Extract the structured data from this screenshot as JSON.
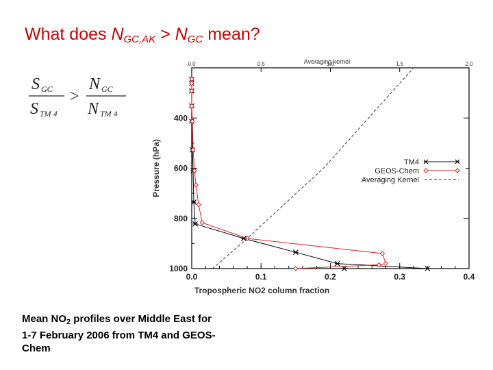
{
  "slide": {
    "title": {
      "prefix": "What does ",
      "n1": "N",
      "n1_sub": "GC,AK",
      "gt": " > ",
      "n2": "N",
      "n2_sub": "GC",
      "suffix": " mean?"
    },
    "formula": {
      "num_left": "S",
      "num_left_sub": "GC",
      "den_left": "S",
      "den_left_sub": "TM 4",
      "operator": ">",
      "num_right": "N",
      "num_right_sub": "GC",
      "den_right": "N",
      "den_right_sub": "TM 4"
    },
    "caption": {
      "pre": "Mean NO",
      "sub": "2",
      "post": " profiles over Middle East for 1-7 February 2006 from TM4 and GEOS-Chem"
    }
  },
  "colors": {
    "title": "#cc0000",
    "tm4": "#000000",
    "geos": "#dd2222",
    "kernel": "#333333"
  },
  "chart_data": {
    "type": "line",
    "xlabel": "Tropospheric NO2 column fraction",
    "ylabel": "Pressure (hPa)",
    "xlim": [
      0.0,
      0.4
    ],
    "x_ticks": [
      "0.0",
      "0.1",
      "0.2",
      "0.3",
      "0.4"
    ],
    "ylim": [
      1000,
      200
    ],
    "y_ticks": [
      "400",
      "600",
      "800",
      "1000"
    ],
    "top_axis": {
      "label": "Averaging kernel",
      "lim": [
        0.0,
        2.0
      ],
      "ticks": [
        "0.0",
        "0.5",
        "1.0",
        "1.5",
        "2.0"
      ]
    },
    "legend": {
      "position": "right",
      "entries": [
        "TM4",
        "GEOS-Chem",
        "Averaging Kernel"
      ]
    },
    "series": [
      {
        "name": "TM4",
        "style": "solid",
        "marker": "asterisk",
        "x": [
          0.0,
          0.0,
          0.0,
          0.0,
          0.0,
          0.001,
          0.002,
          0.003,
          0.005,
          0.075,
          0.15,
          0.21,
          0.34,
          0.22
        ],
        "y": [
          245,
          262,
          292,
          352,
          413,
          527,
          610,
          735,
          822,
          880,
          935,
          980,
          1005,
          1012
        ]
      },
      {
        "name": "GEOS-Chem",
        "style": "solid",
        "marker": "diamond",
        "x": [
          0.0,
          0.0,
          0.0,
          0.0,
          0.001,
          0.002,
          0.004,
          0.006,
          0.01,
          0.015,
          0.08,
          0.275,
          0.28,
          0.27,
          0.15
        ],
        "y": [
          245,
          262,
          292,
          352,
          413,
          527,
          610,
          667,
          745,
          817,
          880,
          940,
          980,
          985,
          1015
        ]
      },
      {
        "name": "Averaging Kernel",
        "style": "dashed",
        "axis": "top",
        "x": [
          0.15,
          0.4,
          0.95,
          1.6
        ],
        "y": [
          1020,
          880,
          600,
          200
        ]
      }
    ]
  }
}
